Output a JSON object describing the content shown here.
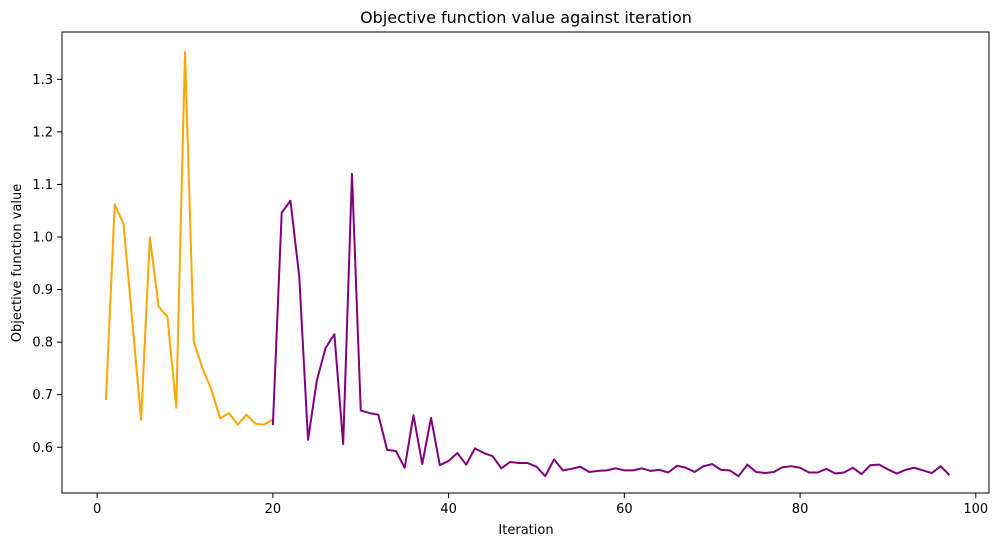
{
  "chart_data": {
    "type": "line",
    "title": "Objective function value against iteration",
    "xlabel": "Iteration",
    "ylabel": "Objective function value",
    "xlim": [
      -4,
      101.5
    ],
    "ylim": [
      0.513,
      1.39
    ],
    "xticks": [
      0,
      20,
      40,
      60,
      80,
      100
    ],
    "yticks": [
      0.6,
      0.7,
      0.8,
      0.9,
      1.0,
      1.1,
      1.2,
      1.3
    ],
    "grid": false,
    "series": [
      {
        "name": "series-orange",
        "color": "#FFA500",
        "x": [
          1,
          2,
          3,
          4,
          5,
          6,
          7,
          8,
          9,
          10,
          11,
          12,
          13,
          14,
          15,
          16,
          17,
          18,
          19,
          20
        ],
        "y": [
          0.69,
          1.062,
          1.025,
          0.84,
          0.652,
          0.999,
          0.868,
          0.848,
          0.675,
          1.352,
          0.8,
          0.75,
          0.71,
          0.655,
          0.665,
          0.643,
          0.662,
          0.645,
          0.643,
          0.653
        ]
      },
      {
        "name": "series-purple",
        "color": "#800080",
        "x": [
          20,
          21,
          22,
          23,
          24,
          25,
          26,
          27,
          28,
          29,
          30,
          31,
          32,
          33,
          34,
          35,
          36,
          37,
          38,
          39,
          40,
          41,
          42,
          43,
          44,
          45,
          46,
          47,
          48,
          49,
          50,
          51,
          52,
          53,
          54,
          55,
          56,
          57,
          58,
          59,
          60,
          61,
          62,
          63,
          64,
          65,
          66,
          67,
          68,
          69,
          70,
          71,
          72,
          73,
          74,
          75,
          76,
          77,
          78,
          79,
          80,
          81,
          82,
          83,
          84,
          85,
          86,
          87,
          88,
          89,
          90,
          91,
          92,
          93,
          94,
          95,
          96,
          97
        ],
        "y": [
          0.642,
          1.046,
          1.069,
          0.925,
          0.614,
          0.727,
          0.789,
          0.815,
          0.606,
          1.12,
          0.67,
          0.665,
          0.662,
          0.595,
          0.593,
          0.561,
          0.661,
          0.568,
          0.656,
          0.566,
          0.574,
          0.589,
          0.567,
          0.598,
          0.589,
          0.583,
          0.56,
          0.572,
          0.57,
          0.57,
          0.563,
          0.545,
          0.577,
          0.556,
          0.559,
          0.563,
          0.553,
          0.555,
          0.556,
          0.56,
          0.556,
          0.556,
          0.56,
          0.555,
          0.557,
          0.552,
          0.565,
          0.561,
          0.553,
          0.564,
          0.568,
          0.557,
          0.556,
          0.545,
          0.567,
          0.553,
          0.551,
          0.553,
          0.562,
          0.564,
          0.561,
          0.552,
          0.552,
          0.559,
          0.55,
          0.552,
          0.561,
          0.549,
          0.566,
          0.567,
          0.558,
          0.55,
          0.557,
          0.561,
          0.556,
          0.551,
          0.564,
          0.547
        ]
      }
    ],
    "xtick_labels": [
      "0",
      "20",
      "40",
      "60",
      "80",
      "100"
    ],
    "ytick_labels": [
      "0.6",
      "0.7",
      "0.8",
      "0.9",
      "1.0",
      "1.1",
      "1.2",
      "1.3"
    ]
  }
}
